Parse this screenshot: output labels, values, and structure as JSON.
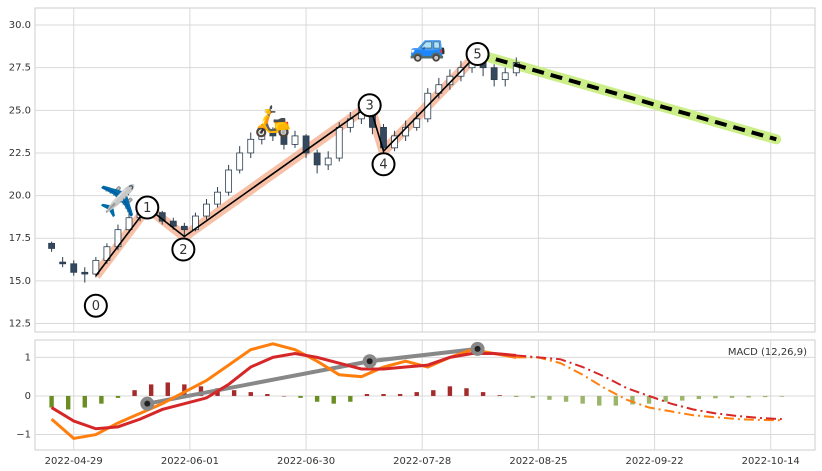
{
  "chart_data": [
    {
      "type": "candlestick",
      "xlim": [
        -7,
        134
      ],
      "ylim": [
        12,
        31
      ],
      "yticks": [
        12.5,
        {
          "value": 15,
          "label": "15.0"
        },
        17.5,
        {
          "value": 20,
          "label": "20.0"
        },
        22.5,
        {
          "value": 25,
          "label": "25.0"
        },
        27.5,
        {
          "value": 30,
          "label": "30.0"
        }
      ],
      "xticks": [
        {
          "value": 0,
          "label": "2022-04-29"
        },
        {
          "value": 21,
          "label": "2022-06-01"
        },
        {
          "value": 42,
          "label": "2022-06-30"
        },
        {
          "value": 63,
          "label": "2022-07-28"
        },
        {
          "value": 84,
          "label": "2022-08-25"
        },
        {
          "value": 105,
          "label": "2022-09-22"
        },
        {
          "value": 126,
          "label": "2022-10-14"
        }
      ],
      "grid": true,
      "up_color": "#ffffff",
      "down_color": "#34495e",
      "edge_color": "#2c3e50",
      "x": [
        -4,
        -2,
        0,
        2,
        4,
        6,
        8,
        10,
        12,
        14,
        16,
        18,
        20,
        22,
        24,
        26,
        28,
        30,
        32,
        34,
        36,
        38,
        40,
        42,
        44,
        46,
        48,
        50,
        52,
        54,
        56,
        58,
        60,
        62,
        64,
        66,
        68,
        70,
        72,
        74,
        76,
        78,
        80
      ],
      "open": [
        17.2,
        16.1,
        16.0,
        15.5,
        15.4,
        16.2,
        17.0,
        18.0,
        18.7,
        19.2,
        19.0,
        18.5,
        18.2,
        18.0,
        18.8,
        19.5,
        20.2,
        21.5,
        22.5,
        23.3,
        23.8,
        23.5,
        23.0,
        23.5,
        22.5,
        21.8,
        22.2,
        24.0,
        24.5,
        25.0,
        24.0,
        22.8,
        23.5,
        24.0,
        24.5,
        26.0,
        26.5,
        27.0,
        27.5,
        28.0,
        27.5,
        26.8,
        27.2
      ],
      "high": [
        17.3,
        16.4,
        16.2,
        15.8,
        16.4,
        17.2,
        18.3,
        19.0,
        19.5,
        19.4,
        19.1,
        18.7,
        18.4,
        19.0,
        19.8,
        20.5,
        21.8,
        22.9,
        23.7,
        24.2,
        24.0,
        23.8,
        23.8,
        23.6,
        22.7,
        22.6,
        24.3,
        24.9,
        25.5,
        25.3,
        24.2,
        23.8,
        24.4,
        24.9,
        26.3,
        26.9,
        27.4,
        27.9,
        28.4,
        28.3,
        27.7,
        27.5,
        28.1
      ],
      "low": [
        16.7,
        15.8,
        15.3,
        14.9,
        15.2,
        16.0,
        16.8,
        17.8,
        18.5,
        18.7,
        18.3,
        18.0,
        17.6,
        17.9,
        18.6,
        19.3,
        20.0,
        21.3,
        22.2,
        23.0,
        23.2,
        22.7,
        22.8,
        22.2,
        21.3,
        21.5,
        22.0,
        23.7,
        24.2,
        23.6,
        22.5,
        22.6,
        23.2,
        23.8,
        24.3,
        25.7,
        26.2,
        26.7,
        27.2,
        27.0,
        26.4,
        26.4,
        27.0
      ],
      "close": [
        16.9,
        16.0,
        15.5,
        15.4,
        16.2,
        17.0,
        18.0,
        18.7,
        19.2,
        19.0,
        18.5,
        18.2,
        18.0,
        18.8,
        19.5,
        20.2,
        21.5,
        22.5,
        23.3,
        23.8,
        23.5,
        23.0,
        23.5,
        22.5,
        21.8,
        22.2,
        24.0,
        24.5,
        25.0,
        24.0,
        22.8,
        23.5,
        24.0,
        24.5,
        26.0,
        26.5,
        27.0,
        27.5,
        28.0,
        27.5,
        26.8,
        27.2,
        27.8
      ],
      "wave": {
        "x": [
          4,
          13.3,
          20,
          53.5,
          56,
          73
        ],
        "values": [
          15.3,
          19.3,
          17.6,
          25.3,
          22.6,
          28.3
        ],
        "labels": [
          "0",
          "1",
          "2",
          "3",
          "4",
          "5"
        ],
        "color": "#000000",
        "band_color": "#f4a582"
      },
      "projection": {
        "x": [
          73,
          127
        ],
        "values": [
          28.3,
          23.3
        ],
        "color": "#000000",
        "band_color": "#ccee88"
      },
      "icons": [
        {
          "text": "✈️",
          "x": 8,
          "y": 19.6
        },
        {
          "text": "🛵",
          "x": 36,
          "y": 24.3
        },
        {
          "text": "🚙",
          "x": 64,
          "y": 28.7
        }
      ]
    },
    {
      "type": "macd",
      "xlim": [
        -7,
        134
      ],
      "ylim": [
        -1.4,
        1.45
      ],
      "title": "MACD (12,26,9)",
      "yticks": [
        {
          "value": -1,
          "label": "−1"
        },
        0,
        1
      ],
      "xticks": [
        {
          "value": 0,
          "label": "2022-04-29"
        },
        {
          "value": 21,
          "label": "2022-06-01"
        },
        {
          "value": 42,
          "label": "2022-06-30"
        },
        {
          "value": 63,
          "label": "2022-07-28"
        },
        {
          "value": 84,
          "label": "2022-08-25"
        },
        {
          "value": 105,
          "label": "2022-09-22"
        },
        {
          "value": 126,
          "label": "2022-10-14"
        }
      ],
      "grid": true,
      "histogram": [
        {
          "x": [
            -4,
            -1,
            2,
            5,
            8,
            11,
            14,
            17,
            20,
            23,
            26,
            29,
            32,
            35,
            38,
            41,
            44,
            47,
            50,
            53,
            56,
            59,
            62,
            65,
            68,
            71,
            74,
            77,
            80
          ],
          "values": [
            -0.3,
            -0.35,
            -0.3,
            -0.2,
            -0.05,
            0.15,
            0.3,
            0.35,
            0.3,
            0.25,
            0.2,
            0.15,
            0.1,
            0.05,
            0.0,
            -0.05,
            -0.15,
            -0.2,
            -0.15,
            0.05,
            0.05,
            0.05,
            0.1,
            0.15,
            0.25,
            0.2,
            0.1,
            0.02,
            -0.02
          ],
          "pos_color": "#a52a2a",
          "neg_color": "#6b8e23"
        },
        {
          "x": [
            83,
            86,
            89,
            92,
            95,
            98,
            101,
            104,
            107,
            110,
            113,
            116,
            119,
            122,
            125,
            128
          ],
          "values": [
            -0.05,
            -0.1,
            -0.15,
            -0.2,
            -0.25,
            -0.25,
            -0.22,
            -0.2,
            -0.15,
            -0.12,
            -0.08,
            -0.06,
            -0.05,
            -0.04,
            -0.03,
            -0.02
          ],
          "pos_color": "#d69a9a",
          "neg_color": "#9bb56a"
        }
      ],
      "series": [
        {
          "color": "#ff7f0e",
          "dash": false,
          "x": [
            -4,
            0,
            4,
            8,
            12,
            16,
            20,
            24,
            28,
            32,
            36,
            40,
            44,
            48,
            52,
            56,
            60,
            64,
            68,
            72,
            76,
            80
          ],
          "values": [
            -0.6,
            -1.1,
            -1.0,
            -0.7,
            -0.45,
            -0.2,
            0.1,
            0.4,
            0.8,
            1.2,
            1.35,
            1.2,
            0.9,
            0.55,
            0.5,
            0.75,
            0.9,
            0.75,
            1.0,
            1.2,
            1.1,
            1.0
          ]
        },
        {
          "color": "#d62728",
          "dash": false,
          "x": [
            -4,
            0,
            4,
            8,
            12,
            16,
            20,
            24,
            28,
            32,
            36,
            40,
            44,
            48,
            52,
            56,
            60,
            64,
            68,
            72,
            76,
            80
          ],
          "values": [
            -0.3,
            -0.65,
            -0.85,
            -0.8,
            -0.6,
            -0.35,
            -0.2,
            -0.05,
            0.3,
            0.75,
            1.0,
            1.1,
            1.0,
            0.85,
            0.7,
            0.7,
            0.75,
            0.8,
            1.0,
            1.1,
            1.1,
            1.05
          ]
        },
        {
          "color": "#ff7f0e",
          "dash": true,
          "x": [
            80,
            84,
            88,
            92,
            96,
            100,
            104,
            108,
            112,
            116,
            120,
            124,
            128
          ],
          "values": [
            1.0,
            1.0,
            0.85,
            0.55,
            0.2,
            -0.1,
            -0.3,
            -0.4,
            -0.5,
            -0.55,
            -0.6,
            -0.62,
            -0.63
          ]
        },
        {
          "color": "#d62728",
          "dash": true,
          "x": [
            80,
            84,
            88,
            92,
            96,
            100,
            104,
            108,
            112,
            116,
            120,
            124,
            128
          ],
          "values": [
            1.05,
            1.0,
            0.95,
            0.75,
            0.5,
            0.2,
            0.0,
            -0.2,
            -0.35,
            -0.45,
            -0.52,
            -0.57,
            -0.6
          ]
        }
      ],
      "divergence": {
        "x": [
          13.3,
          53.5,
          73
        ],
        "values": [
          -0.2,
          0.9,
          1.22
        ],
        "color": "#888888"
      }
    }
  ]
}
